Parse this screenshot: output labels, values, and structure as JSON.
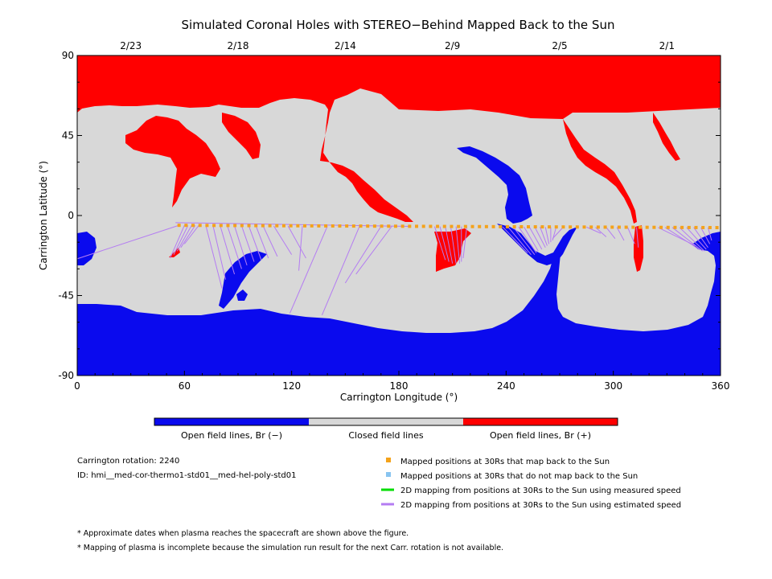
{
  "title": "Simulated Coronal Holes with STEREO−Behind Mapped Back to the Sun",
  "colors": {
    "open_negative": "#0a0aee",
    "closed": "#d8d8d8",
    "open_positive": "#ff0000",
    "mapped_back": "#f4a21a",
    "not_mapped": "#88c4f0",
    "measured_line": "#00dd00",
    "estimated_line": "#b47cf2"
  },
  "colorbar": {
    "labels": [
      "Open field lines, Br (−)",
      "Closed field lines",
      "Open field lines, Br (+)"
    ]
  },
  "info": {
    "rotation": "Carrington rotation: 2240",
    "id": "ID: hmi__med-cor-thermo1-std01__med-hel-poly-std01"
  },
  "legend": [
    {
      "label": "Mapped positions at 30Rs that map back to the Sun",
      "kind": "square",
      "color": "#f4a21a"
    },
    {
      "label": "Mapped positions at 30Rs that do not map back to the Sun",
      "kind": "square",
      "color": "#88c4f0"
    },
    {
      "label": "2D mapping from positions at 30Rs to the Sun using measured speed",
      "kind": "line",
      "color": "#00dd00"
    },
    {
      "label": "2D mapping from positions at 30Rs to the Sun using estimated speed",
      "kind": "line",
      "color": "#b47cf2"
    }
  ],
  "footnotes": [
    "* Approximate dates when plasma reaches the spacecraft are shown above the figure.",
    "* Mapping of plasma is incomplete because the simulation run result for the next Carr. rotation is not available."
  ],
  "chart_data": {
    "type": "heatmap",
    "title": "Simulated Coronal Holes with STEREO−Behind Mapped Back to the Sun",
    "xlabel": "Carrington Longitude (°)",
    "ylabel": "Carrington Latitude (°)",
    "xlim": [
      0,
      360
    ],
    "ylim": [
      -90,
      90
    ],
    "x_ticks": [
      0,
      60,
      120,
      180,
      240,
      300,
      360
    ],
    "y_ticks": [
      90,
      45,
      0,
      -45,
      -90
    ],
    "top_axis": [
      {
        "lon": 30,
        "date": "2/23"
      },
      {
        "lon": 90,
        "date": "2/18"
      },
      {
        "lon": 150,
        "date": "2/14"
      },
      {
        "lon": 210,
        "date": "2/9"
      },
      {
        "lon": 270,
        "date": "2/5"
      },
      {
        "lon": 330,
        "date": "2/1"
      }
    ],
    "spacecraft_track": {
      "lon_start": 57,
      "lon_end": 358,
      "lat_start": -5.5,
      "lat_end": -6.8,
      "count": 78
    },
    "mapping_lines_estimated": [
      {
        "from": [
          57,
          -5.5
        ],
        "to": [
          -2,
          -25
        ]
      },
      {
        "from": [
          60,
          -5.5
        ],
        "to": [
          52,
          -24
        ]
      },
      {
        "from": [
          62,
          -5.6
        ],
        "to": [
          54,
          -22
        ]
      },
      {
        "from": [
          64,
          -5.6
        ],
        "to": [
          56,
          -20
        ]
      },
      {
        "from": [
          66,
          -5.6
        ],
        "to": [
          58,
          -18
        ]
      },
      {
        "from": [
          68,
          -5.6
        ],
        "to": [
          60,
          -16
        ]
      },
      {
        "from": [
          72,
          -5.7
        ],
        "to": [
          81,
          -41
        ]
      },
      {
        "from": [
          76,
          -5.7
        ],
        "to": [
          83,
          -36
        ]
      },
      {
        "from": [
          80,
          -5.7
        ],
        "to": [
          88,
          -33
        ]
      },
      {
        "from": [
          84,
          -5.7
        ],
        "to": [
          92,
          -30
        ]
      },
      {
        "from": [
          88,
          -5.8
        ],
        "to": [
          95,
          -28
        ]
      },
      {
        "from": [
          92,
          -5.8
        ],
        "to": [
          99,
          -26
        ]
      },
      {
        "from": [
          96,
          -5.8
        ],
        "to": [
          103,
          -25
        ]
      },
      {
        "from": [
          100,
          -5.8
        ],
        "to": [
          107,
          -24
        ]
      },
      {
        "from": [
          104,
          -5.8
        ],
        "to": [
          112,
          -23
        ]
      },
      {
        "from": [
          110,
          -5.9
        ],
        "to": [
          120,
          -22
        ]
      },
      {
        "from": [
          118,
          -5.9
        ],
        "to": [
          128,
          -24
        ]
      },
      {
        "from": [
          126,
          -5.9
        ],
        "to": [
          124,
          -31
        ]
      },
      {
        "from": [
          140,
          -6.0
        ],
        "to": [
          119,
          -55
        ]
      },
      {
        "from": [
          158,
          -6.0
        ],
        "to": [
          137,
          -56
        ]
      },
      {
        "from": [
          170,
          -6.1
        ],
        "to": [
          150,
          -38
        ]
      },
      {
        "from": [
          176,
          -6.1
        ],
        "to": [
          156,
          -33
        ]
      },
      {
        "from": [
          186,
          -6.1
        ],
        "to": [
          55,
          -4
        ]
      },
      {
        "from": [
          200,
          -6.2
        ],
        "to": [
          206,
          -25
        ]
      },
      {
        "from": [
          203,
          -6.2
        ],
        "to": [
          208,
          -26
        ]
      },
      {
        "from": [
          206,
          -6.2
        ],
        "to": [
          210,
          -27
        ]
      },
      {
        "from": [
          209,
          -6.2
        ],
        "to": [
          212,
          -27
        ]
      },
      {
        "from": [
          212,
          -6.2
        ],
        "to": [
          214,
          -27
        ]
      },
      {
        "from": [
          215,
          -6.2
        ],
        "to": [
          215,
          -26
        ]
      },
      {
        "from": [
          218,
          -6.3
        ],
        "to": [
          216,
          -24
        ]
      },
      {
        "from": [
          238,
          -6.3
        ],
        "to": [
          252,
          -21
        ]
      },
      {
        "from": [
          241,
          -6.3
        ],
        "to": [
          254,
          -22
        ]
      },
      {
        "from": [
          244,
          -6.4
        ],
        "to": [
          256,
          -22
        ]
      },
      {
        "from": [
          247,
          -6.4
        ],
        "to": [
          257,
          -21
        ]
      },
      {
        "from": [
          250,
          -6.4
        ],
        "to": [
          258,
          -20
        ]
      },
      {
        "from": [
          253,
          -6.4
        ],
        "to": [
          260,
          -19
        ]
      },
      {
        "from": [
          256,
          -6.4
        ],
        "to": [
          262,
          -18
        ]
      },
      {
        "from": [
          259,
          -6.4
        ],
        "to": [
          263,
          -17
        ]
      },
      {
        "from": [
          262,
          -6.5
        ],
        "to": [
          264,
          -16
        ]
      },
      {
        "from": [
          265,
          -6.5
        ],
        "to": [
          265,
          -15
        ]
      },
      {
        "from": [
          268,
          -6.5
        ],
        "to": [
          266,
          -14
        ]
      },
      {
        "from": [
          272,
          -6.5
        ],
        "to": [
          266,
          -13
        ]
      },
      {
        "from": [
          285,
          -6.5
        ],
        "to": [
          293,
          -10
        ]
      },
      {
        "from": [
          290,
          -6.6
        ],
        "to": [
          296,
          -12
        ]
      },
      {
        "from": [
          296,
          -6.6
        ],
        "to": [
          301,
          -13
        ]
      },
      {
        "from": [
          302,
          -6.6
        ],
        "to": [
          306,
          -14
        ]
      },
      {
        "from": [
          308,
          -6.6
        ],
        "to": [
          312,
          -16
        ]
      },
      {
        "from": [
          313,
          -6.6
        ],
        "to": [
          314,
          -18
        ]
      },
      {
        "from": [
          325,
          -6.7
        ],
        "to": [
          346,
          -17
        ]
      },
      {
        "from": [
          329,
          -6.7
        ],
        "to": [
          348,
          -19
        ]
      },
      {
        "from": [
          333,
          -6.7
        ],
        "to": [
          350,
          -20
        ]
      },
      {
        "from": [
          337,
          -6.7
        ],
        "to": [
          351,
          -20
        ]
      },
      {
        "from": [
          341,
          -6.7
        ],
        "to": [
          352,
          -19
        ]
      },
      {
        "from": [
          345,
          -6.7
        ],
        "to": [
          353,
          -18
        ]
      },
      {
        "from": [
          349,
          -6.8
        ],
        "to": [
          354,
          -16
        ]
      },
      {
        "from": [
          353,
          -6.8
        ],
        "to": [
          355,
          -14
        ]
      }
    ],
    "regions": {
      "positive_north": [
        [
          0,
          90
        ],
        [
          360,
          90
        ],
        [
          360,
          67
        ],
        [
          318,
          67
        ],
        [
          316,
          70
        ],
        [
          318,
          60
        ],
        [
          312,
          45
        ],
        [
          303,
          42
        ],
        [
          296,
          40
        ],
        [
          290,
          42
        ],
        [
          285,
          52
        ],
        [
          278,
          62
        ],
        [
          266,
          70
        ],
        [
          240,
          64
        ],
        [
          236,
          61
        ],
        [
          233,
          62
        ],
        [
          228,
          63
        ],
        [
          210,
          64
        ],
        [
          183,
          63
        ],
        [
          166,
          63
        ],
        [
          152,
          62
        ],
        [
          145,
          60
        ],
        [
          140,
          59
        ],
        [
          136,
          52
        ],
        [
          134,
          44
        ],
        [
          136,
          34
        ],
        [
          141,
          27
        ],
        [
          148,
          24
        ],
        [
          160,
          24
        ],
        [
          176,
          20
        ],
        [
          183,
          16
        ],
        [
          189,
          9
        ],
        [
          194,
          10
        ],
        [
          192,
          17
        ],
        [
          186,
          22
        ],
        [
          178,
          23
        ],
        [
          169,
          26
        ],
        [
          160,
          28
        ],
        [
          154,
          30
        ],
        [
          150,
          33
        ],
        [
          149,
          38
        ],
        [
          150,
          41
        ],
        [
          156,
          46
        ],
        [
          166,
          50
        ],
        [
          178,
          55
        ],
        [
          200,
          58
        ],
        [
          220,
          58
        ],
        [
          238,
          58
        ],
        [
          252,
          56
        ],
        [
          266,
          52
        ],
        [
          280,
          46
        ],
        [
          286,
          34
        ],
        [
          292,
          24
        ],
        [
          300,
          22
        ],
        [
          308,
          18
        ],
        [
          314,
          4
        ],
        [
          317,
          7
        ],
        [
          317,
          15
        ],
        [
          319,
          35
        ],
        [
          326,
          48
        ],
        [
          331,
          54
        ],
        [
          340,
          56
        ],
        [
          360,
          57
        ],
        [
          360,
          67
        ]
      ],
      "negative_south": [
        [
          0,
          -90
        ],
        [
          360,
          -90
        ],
        [
          360,
          -8
        ],
        [
          352,
          -10
        ],
        [
          346,
          -16
        ],
        [
          340,
          -26
        ],
        [
          344,
          -36
        ],
        [
          350,
          -44
        ],
        [
          356,
          -58
        ],
        [
          360,
          -62
        ],
        [
          360,
          -90
        ]
      ]
    }
  }
}
